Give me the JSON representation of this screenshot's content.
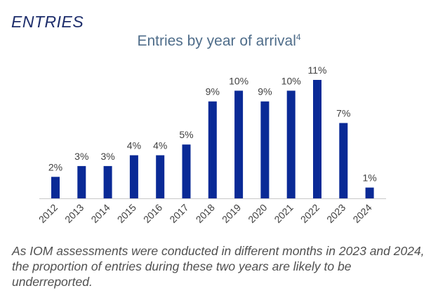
{
  "header": {
    "section_title": "ENTRIES"
  },
  "chart_data": {
    "type": "bar",
    "title": "Entries by year of arrival",
    "title_superscript": "4",
    "xlabel": "",
    "ylabel": "",
    "categories": [
      "2012",
      "2013",
      "2014",
      "2015",
      "2016",
      "2017",
      "2018",
      "2019",
      "2020",
      "2021",
      "2022",
      "2023",
      "2024"
    ],
    "values": [
      2,
      3,
      3,
      4,
      4,
      5,
      9,
      10,
      9,
      10,
      11,
      7,
      1
    ],
    "value_labels": [
      "2%",
      "3%",
      "3%",
      "4%",
      "4%",
      "5%",
      "9%",
      "10%",
      "9%",
      "10%",
      "11%",
      "7%",
      "1%"
    ],
    "unit": "%",
    "ylim": [
      0,
      11
    ],
    "grid": false,
    "legend": "none",
    "bar_color": "#0a2a96",
    "axis_color": "#c8c8c8",
    "label_color": "#404040"
  },
  "footnote": {
    "text": "As IOM assessments were conducted in different months in 2023 and 2024, the proportion of entries during these two years are likely to be underreported."
  }
}
